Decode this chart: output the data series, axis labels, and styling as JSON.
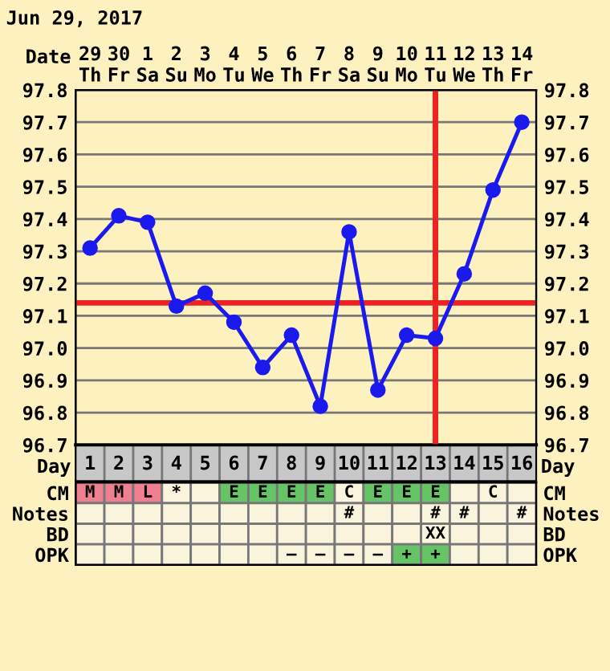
{
  "chart_data": [
    {
      "type": "line",
      "title": "Jun 29, 2017",
      "xlabel": "Date",
      "categories": [
        "29\nTh",
        "30\nFr",
        "1\nSa",
        "2\nSu",
        "3\nMo",
        "4\nTu",
        "5\nWe",
        "6\nTh",
        "7\nFr",
        "8\nSa",
        "9\nSu",
        "10\nMo",
        "11\nTu",
        "12\nWe",
        "13\nTh",
        "14\nFr"
      ],
      "ylim": [
        96.7,
        97.8
      ],
      "yticks": [
        {
          "value": 96.7,
          "label": "96.7"
        },
        {
          "value": 96.8,
          "label": "96.8"
        },
        {
          "value": 96.9,
          "label": "96.9"
        },
        {
          "value": 97.0,
          "label": "97.0"
        },
        {
          "value": 97.1,
          "label": "97.1"
        },
        {
          "value": 97.2,
          "label": "97.2"
        },
        {
          "value": 97.3,
          "label": "97.3"
        },
        {
          "value": 97.4,
          "label": "97.4"
        },
        {
          "value": 97.5,
          "label": "97.5"
        },
        {
          "value": 97.6,
          "label": "97.6"
        },
        {
          "value": 97.7,
          "label": "97.7"
        },
        {
          "value": 97.8,
          "label": "97.8"
        }
      ],
      "y2lim": [
        96.7,
        97.8
      ],
      "y2ticks": [
        {
          "value": 96.7,
          "label": "96.7"
        },
        {
          "value": 96.8,
          "label": "96.8"
        },
        {
          "value": 96.9,
          "label": "96.9"
        },
        {
          "value": 97.0,
          "label": "97.0"
        },
        {
          "value": 97.1,
          "label": "97.1"
        },
        {
          "value": 97.2,
          "label": "97.2"
        },
        {
          "value": 97.3,
          "label": "97.3"
        },
        {
          "value": 97.4,
          "label": "97.4"
        },
        {
          "value": 97.5,
          "label": "97.5"
        },
        {
          "value": 97.6,
          "label": "97.6"
        },
        {
          "value": 97.7,
          "label": "97.7"
        },
        {
          "value": 97.8,
          "label": "97.8"
        }
      ],
      "series": [
        {
          "color": "#1a1aee",
          "values": [
            97.31,
            97.41,
            97.39,
            97.13,
            97.17,
            97.08,
            96.94,
            97.04,
            96.82,
            97.36,
            96.87,
            97.04,
            97.03,
            97.23,
            97.49,
            97.7
          ]
        }
      ],
      "marker": "circle",
      "line_style": "solid",
      "grid": true,
      "legend": false,
      "ref_lines": [
        {
          "axis": "y",
          "value": 97.14,
          "color": "#ee2222"
        },
        {
          "axis": "x",
          "value": "11\nTu",
          "color": "#ee2222"
        }
      ]
    },
    {
      "type": "heatmap",
      "xlabel": "Day",
      "categories": [
        "1",
        "2",
        "3",
        "4",
        "5",
        "6",
        "7",
        "8",
        "9",
        "10",
        "11",
        "12",
        "13",
        "14",
        "15",
        "16"
      ],
      "y_categories": [
        "CM",
        "Notes",
        "BD",
        "OPK"
      ],
      "y2_categories": [
        "CM",
        "Notes",
        "BD",
        "OPK"
      ],
      "cells": [
        [
          null,
          null,
          null,
          null,
          null,
          null,
          null,
          null,
          null,
          null,
          null,
          null,
          null,
          null,
          null,
          null
        ],
        [
          null,
          null,
          null,
          null,
          null,
          null,
          null,
          null,
          null,
          null,
          null,
          null,
          null,
          null,
          null,
          null
        ],
        [
          null,
          null,
          null,
          null,
          null,
          null,
          null,
          null,
          null,
          null,
          null,
          null,
          null,
          null,
          null,
          null
        ],
        [
          null,
          null,
          null,
          null,
          null,
          null,
          null,
          null,
          null,
          null,
          null,
          null,
          null,
          null,
          null,
          null
        ]
      ],
      "cell_labels": [
        [
          "M",
          "M",
          "L",
          "*",
          null,
          "E",
          "E",
          "E",
          "E",
          "C",
          "E",
          "E",
          "E",
          null,
          "C",
          null
        ],
        [
          null,
          null,
          null,
          null,
          null,
          null,
          null,
          null,
          null,
          "#",
          null,
          null,
          "#",
          "#",
          null,
          "#"
        ],
        [
          null,
          null,
          null,
          null,
          null,
          null,
          null,
          null,
          null,
          null,
          null,
          null,
          "XX",
          null,
          null,
          null
        ],
        [
          null,
          null,
          null,
          null,
          null,
          null,
          null,
          "–",
          "–",
          "–",
          "–",
          "+",
          "+",
          null,
          null,
          null
        ]
      ],
      "colors": [
        [
          "#f08090",
          "#f08090",
          "#f08090",
          null,
          null,
          "#66c466",
          "#66c466",
          "#66c466",
          "#66c466",
          null,
          "#66c466",
          "#66c466",
          "#66c466",
          null,
          null,
          null
        ],
        [
          null,
          null,
          null,
          null,
          null,
          null,
          null,
          null,
          null,
          null,
          null,
          null,
          null,
          null,
          null,
          null
        ],
        [
          null,
          null,
          null,
          null,
          null,
          null,
          null,
          null,
          null,
          null,
          null,
          null,
          null,
          null,
          null,
          null
        ],
        [
          null,
          null,
          null,
          null,
          null,
          null,
          null,
          null,
          null,
          null,
          null,
          "#66c466",
          "#66c466",
          null,
          null,
          null
        ]
      ]
    }
  ]
}
